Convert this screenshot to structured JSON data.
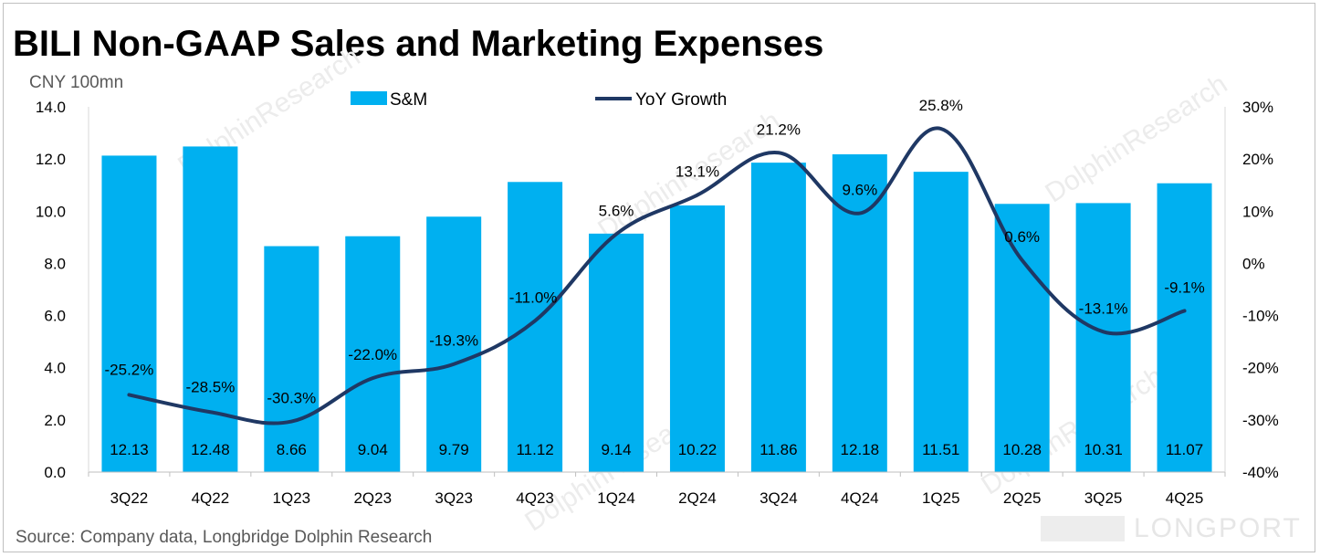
{
  "title": "BILI Non-GAAP Sales and Marketing Expenses",
  "unit_label": "CNY 100mn",
  "source": "Source: Company data, Longbridge Dolphin Research",
  "watermark": "LONGPORT",
  "watermark_diag": "DolphinResearch",
  "colors": {
    "bar": "#00b0f0",
    "line": "#1f3864",
    "axis_text": "#000000"
  },
  "chart_data": {
    "type": "bar",
    "title": "BILI Non-GAAP Sales and Marketing Expenses",
    "categories": [
      "3Q22",
      "4Q22",
      "1Q23",
      "2Q23",
      "3Q23",
      "4Q23",
      "1Q24",
      "2Q24",
      "3Q24",
      "4Q24",
      "1Q25",
      "2Q25",
      "3Q25",
      "4Q25"
    ],
    "series": [
      {
        "name": "S&M",
        "type": "bar",
        "axis": "left",
        "values": [
          12.13,
          12.48,
          8.66,
          9.04,
          9.79,
          11.12,
          9.14,
          10.22,
          11.86,
          12.18,
          11.51,
          10.28,
          10.31,
          11.07
        ],
        "labels": [
          "12.13",
          "12.48",
          "8.66",
          "9.04",
          "9.79",
          "11.12",
          "9.14",
          "10.22",
          "11.86",
          "12.18",
          "11.51",
          "10.28",
          "10.31",
          "11.07"
        ]
      },
      {
        "name": "YoY Growth",
        "type": "line",
        "axis": "right",
        "values": [
          -25.2,
          -28.5,
          -30.3,
          -22.0,
          -19.3,
          -11.0,
          5.6,
          13.1,
          21.2,
          9.6,
          25.8,
          0.6,
          -13.1,
          -9.1
        ],
        "labels": [
          "-25.2%",
          "-28.5%",
          "-30.3%",
          "-22.0%",
          "-19.3%",
          "-11.0%",
          "5.6%",
          "13.1%",
          "21.2%",
          "9.6%",
          "25.8%",
          "0.6%",
          "-13.1%",
          "-9.1%"
        ]
      }
    ],
    "left_axis": {
      "min": 0,
      "max": 14,
      "ticks": [
        "0.0",
        "2.0",
        "4.0",
        "6.0",
        "8.0",
        "10.0",
        "12.0",
        "14.0"
      ]
    },
    "right_axis": {
      "min": -40,
      "max": 30,
      "ticks": [
        "-40%",
        "-30%",
        "-20%",
        "-10%",
        "0%",
        "10%",
        "20%",
        "30%"
      ]
    },
    "legend": [
      "S&M",
      "YoY Growth"
    ],
    "legend_position": "top",
    "grid": false
  }
}
